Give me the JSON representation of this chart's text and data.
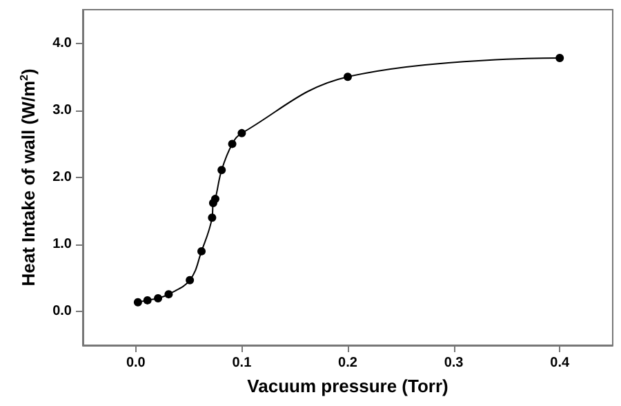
{
  "chart_data": {
    "type": "line",
    "xlabel": "Vacuum pressure (Torr)",
    "ylabel": "Heat Intake of wall (W/m$^{2}$)",
    "x": [
      0.002,
      0.011,
      0.021,
      0.031,
      0.051,
      0.062,
      0.072,
      0.073,
      0.075,
      0.081,
      0.091,
      0.1,
      0.2,
      0.4
    ],
    "series": [
      {
        "color": "#000000",
        "values": [
          0.14,
          0.17,
          0.2,
          0.26,
          0.47,
          0.9,
          1.4,
          1.62,
          1.68,
          2.11,
          2.5,
          2.66,
          3.5,
          3.78
        ]
      }
    ],
    "xlim": [
      -0.05,
      0.45
    ],
    "ylim": [
      -0.5,
      4.5
    ],
    "xticks": [
      {
        "value": 0,
        "label": "0.0"
      },
      {
        "value": 0.1,
        "label": "0.1"
      },
      {
        "value": 0.2,
        "label": "0.2"
      },
      {
        "value": 0.3,
        "label": "0.3"
      },
      {
        "value": 0.4,
        "label": "0.4"
      }
    ],
    "yticks": [
      {
        "value": 0,
        "label": "0.0"
      },
      {
        "value": 1,
        "label": "1.0"
      },
      {
        "value": 2,
        "label": "2.0"
      },
      {
        "value": 3,
        "label": "3.0"
      },
      {
        "value": 4,
        "label": "4.0"
      }
    ],
    "grid": false,
    "marker": "circle",
    "line_style": "solid"
  }
}
